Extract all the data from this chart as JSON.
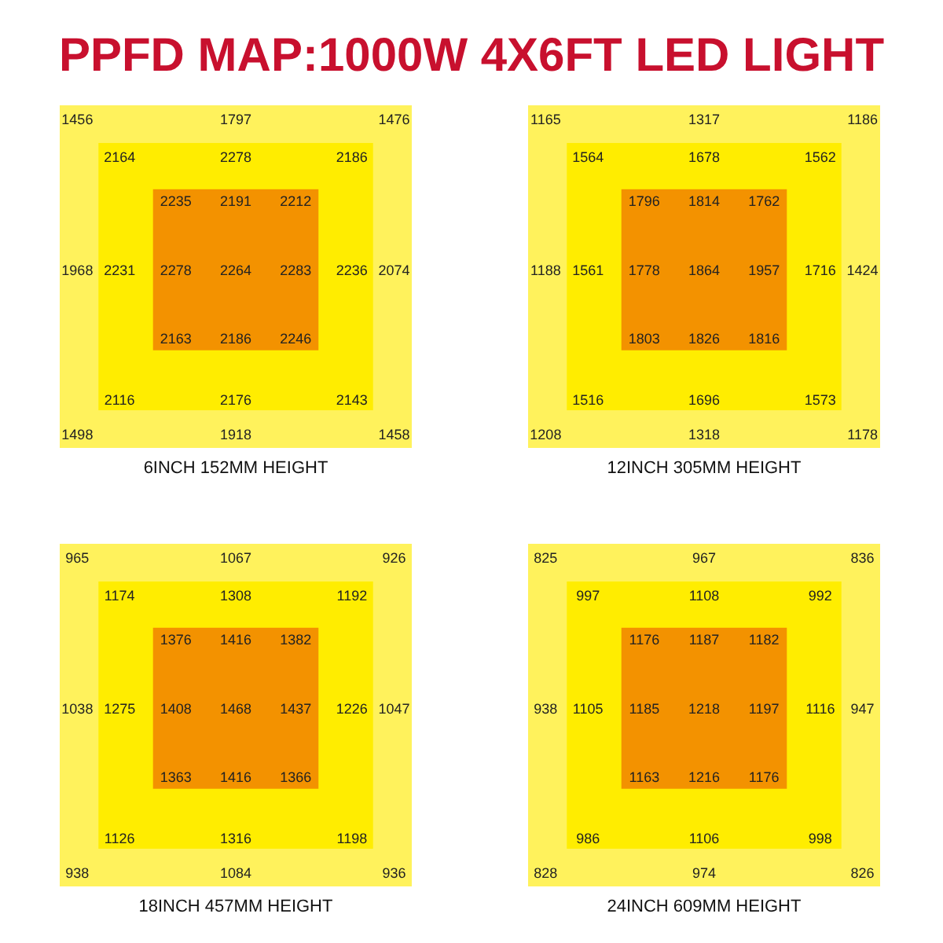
{
  "chart_data": [
    {
      "type": "other",
      "title": "PPFD MAP:1000W 4X6FT LED LIGHT",
      "xlabel": "6INCH 152MM HEIGHT",
      "data_labels": true,
      "values": [
        1456,
        1797,
        1476,
        2164,
        2278,
        2186,
        2235,
        2191,
        2212,
        1968,
        2231,
        2278,
        2264,
        2283,
        2236,
        2074,
        2163,
        2186,
        2246,
        2116,
        2176,
        2143,
        1498,
        1918,
        1458
      ]
    },
    {
      "type": "other",
      "xlabel": "12INCH 305MM HEIGHT",
      "data_labels": true,
      "values": [
        1165,
        1317,
        1186,
        1564,
        1678,
        1562,
        1796,
        1814,
        1762,
        1188,
        1561,
        1778,
        1864,
        1957,
        1716,
        1424,
        1803,
        1826,
        1816,
        1516,
        1696,
        1573,
        1208,
        1318,
        1178
      ]
    },
    {
      "type": "other",
      "xlabel": "18INCH 457MM HEIGHT",
      "data_labels": true,
      "values": [
        965,
        1067,
        926,
        1174,
        1308,
        1192,
        1376,
        1416,
        1382,
        1038,
        1275,
        1408,
        1468,
        1437,
        1226,
        1047,
        1363,
        1416,
        1366,
        1126,
        1316,
        1198,
        938,
        1084,
        936
      ]
    },
    {
      "type": "other",
      "xlabel": "24INCH 609MM HEIGHT",
      "data_labels": true,
      "values": [
        825,
        967,
        836,
        997,
        1108,
        992,
        1176,
        1187,
        1182,
        938,
        1105,
        1185,
        1218,
        1197,
        1116,
        947,
        1163,
        1216,
        1176,
        986,
        1106,
        998,
        828,
        974,
        826
      ]
    }
  ]
}
